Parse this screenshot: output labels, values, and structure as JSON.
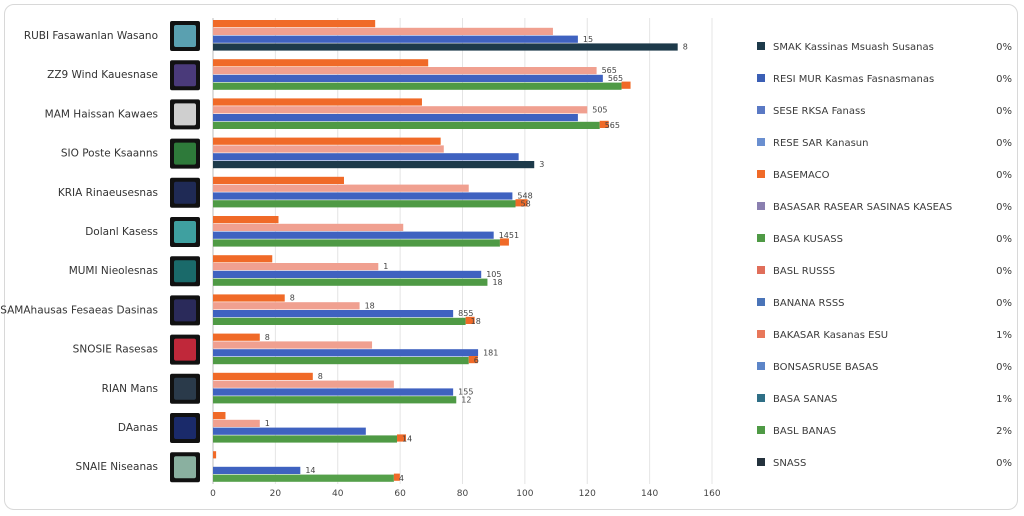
{
  "chart_data": {
    "type": "bar",
    "orientation": "horizontal",
    "grid": true,
    "legend_placement": "right",
    "xlim": [
      0,
      160
    ],
    "x_ticks": [
      "0",
      "20",
      "40",
      "60",
      "80",
      "100",
      "120",
      "140",
      "160"
    ],
    "categories": [
      {
        "label": "RUBI Fasawanlan Wasano",
        "icon": "robot-thumbnail"
      },
      {
        "label": "ZZ9 Wind Kauesnase",
        "icon": "text-screen-thumbnail"
      },
      {
        "label": "MAM Haissan Kawaes",
        "icon": "dashboard-thumbnail"
      },
      {
        "label": "SIO Poste Ksaanns",
        "icon": "green-grid-thumbnail"
      },
      {
        "label": "KRIA Rinaeusesnas",
        "icon": "circuit-thumbnail"
      },
      {
        "label": "Dolanl Kasess",
        "icon": "gear-thumbnail"
      },
      {
        "label": "MUMI Nieolesnas",
        "icon": "teal-screen-thumbnail"
      },
      {
        "label": "SAMAhausas Fesaeas Dasinas",
        "icon": "waveform-thumbnail"
      },
      {
        "label": "SNOSIE Rasesas",
        "icon": "red-grid-thumbnail"
      },
      {
        "label": "RIAN Mans",
        "icon": "bars-thumbnail"
      },
      {
        "label": "DAanas",
        "icon": "blue-chip-thumbnail"
      },
      {
        "label": "SNAIE Niseanas",
        "icon": "monitor-thumbnail"
      }
    ],
    "series": [
      {
        "name": "SMAK Kassinas Msuash Susanas",
        "legend_value": "0%",
        "color": "#1d3a4a",
        "values": [
          149,
          null,
          null,
          103,
          null,
          null,
          null,
          null,
          null,
          null,
          null,
          null
        ]
      },
      {
        "name": "RESI MUR Kasmas Fasnasmanas",
        "legend_value": "0%",
        "color": "#3b5fb5",
        "values": [
          null,
          126,
          null,
          null,
          null,
          null,
          null,
          null,
          null,
          null,
          null,
          null
        ]
      },
      {
        "name": "SESE RKSA Fanass",
        "legend_value": "0%",
        "color": "#5a79c4",
        "values": [
          null,
          null,
          null,
          null,
          null,
          null,
          null,
          null,
          null,
          null,
          null,
          null
        ]
      },
      {
        "name": "RESE SAR Kanasun",
        "legend_value": "0%",
        "color": "#6a8fd0",
        "values": [
          null,
          null,
          null,
          null,
          null,
          null,
          null,
          null,
          null,
          null,
          null,
          null
        ]
      },
      {
        "name": "BASEMACO",
        "legend_value": "0%",
        "color": "#f06a28",
        "values": [
          52,
          69,
          67,
          73,
          42,
          21,
          19,
          23,
          15,
          32,
          4,
          1
        ]
      },
      {
        "name": "BASASAR RASEAR SASINAS KASEAS",
        "legend_value": "0%",
        "color": "#8a7fb0",
        "values": [
          null,
          null,
          null,
          null,
          null,
          null,
          null,
          null,
          null,
          null,
          null,
          null
        ]
      },
      {
        "name": "BASA KUSASS",
        "legend_value": "0%",
        "color": "#4f9a45",
        "values": [
          null,
          131,
          124,
          null,
          97,
          92,
          88,
          81,
          82,
          78,
          59,
          null
        ]
      },
      {
        "name": "BASL RUSSS",
        "legend_value": "0%",
        "color": "#e06e5a",
        "values": [
          null,
          null,
          null,
          null,
          null,
          null,
          null,
          null,
          null,
          null,
          null,
          null
        ]
      },
      {
        "name": "BANANA RSSS",
        "legend_value": "0%",
        "color": "#4a74b8",
        "values": [
          null,
          null,
          null,
          null,
          null,
          null,
          null,
          null,
          null,
          null,
          null,
          null
        ]
      },
      {
        "name": "BAKASAR Kasanas ESU",
        "legend_value": "1%",
        "color": "#e8775a",
        "values": [
          null,
          null,
          null,
          null,
          null,
          null,
          null,
          null,
          null,
          null,
          null,
          null
        ]
      },
      {
        "name": "BONSASRUSE BASAS",
        "legend_value": "0%",
        "color": "#5c85c8",
        "values": [
          null,
          null,
          null,
          null,
          null,
          null,
          null,
          null,
          null,
          null,
          null,
          null
        ]
      },
      {
        "name": "BASA SANAS",
        "legend_value": "1%",
        "color": "#2f6f86",
        "values": [
          null,
          null,
          null,
          null,
          null,
          null,
          null,
          null,
          null,
          null,
          null,
          null
        ]
      },
      {
        "name": "BASL BANAS",
        "legend_value": "2%",
        "color": "#4f9a45",
        "values": [
          null,
          null,
          null,
          null,
          null,
          null,
          null,
          null,
          null,
          null,
          null,
          null
        ]
      },
      {
        "name": "SNASS",
        "legend_value": "0%",
        "color": "#24323d",
        "values": [
          null,
          null,
          null,
          null,
          null,
          null,
          null,
          null,
          null,
          null,
          null,
          null
        ]
      },
      {
        "name": "Salmon",
        "legend_value": "",
        "color": "#f0a090",
        "in_legend": false,
        "values": [
          109,
          123,
          120,
          74,
          82,
          61,
          53,
          47,
          51,
          58,
          15,
          null
        ]
      },
      {
        "name": "Blue",
        "legend_value": "",
        "color": "#3f62c0",
        "in_legend": false,
        "values": [
          117,
          125,
          117,
          98,
          96,
          90,
          86,
          77,
          85,
          77,
          49,
          28
        ]
      },
      {
        "name": "Blue2",
        "legend_value": "",
        "color": "#4a6fcf",
        "in_legend": false,
        "values": [
          null,
          null,
          null,
          null,
          null,
          null,
          null,
          80,
          null,
          null,
          59,
          61
        ]
      },
      {
        "name": "Green",
        "legend_value": "",
        "color": "#55a04a",
        "in_legend": false,
        "values": [
          null,
          null,
          null,
          null,
          null,
          null,
          null,
          null,
          null,
          null,
          null,
          58
        ]
      }
    ],
    "data_labels": [
      [
        "",
        "",
        "15",
        "8"
      ],
      [
        "",
        "565",
        "565",
        ""
      ],
      [
        "",
        "505",
        "",
        "565"
      ],
      [
        "",
        "",
        "",
        "3"
      ],
      [
        "",
        "",
        "548",
        "58"
      ],
      [
        "",
        "",
        "1451",
        ""
      ],
      [
        "",
        "1",
        "105",
        "18"
      ],
      [
        "8",
        "18",
        "855",
        "18"
      ],
      [
        "8",
        "",
        "181",
        "6"
      ],
      [
        "8",
        "",
        "155",
        "12"
      ],
      [
        "",
        "1",
        "",
        "14"
      ],
      [
        "",
        "1",
        "14",
        "4"
      ]
    ]
  }
}
